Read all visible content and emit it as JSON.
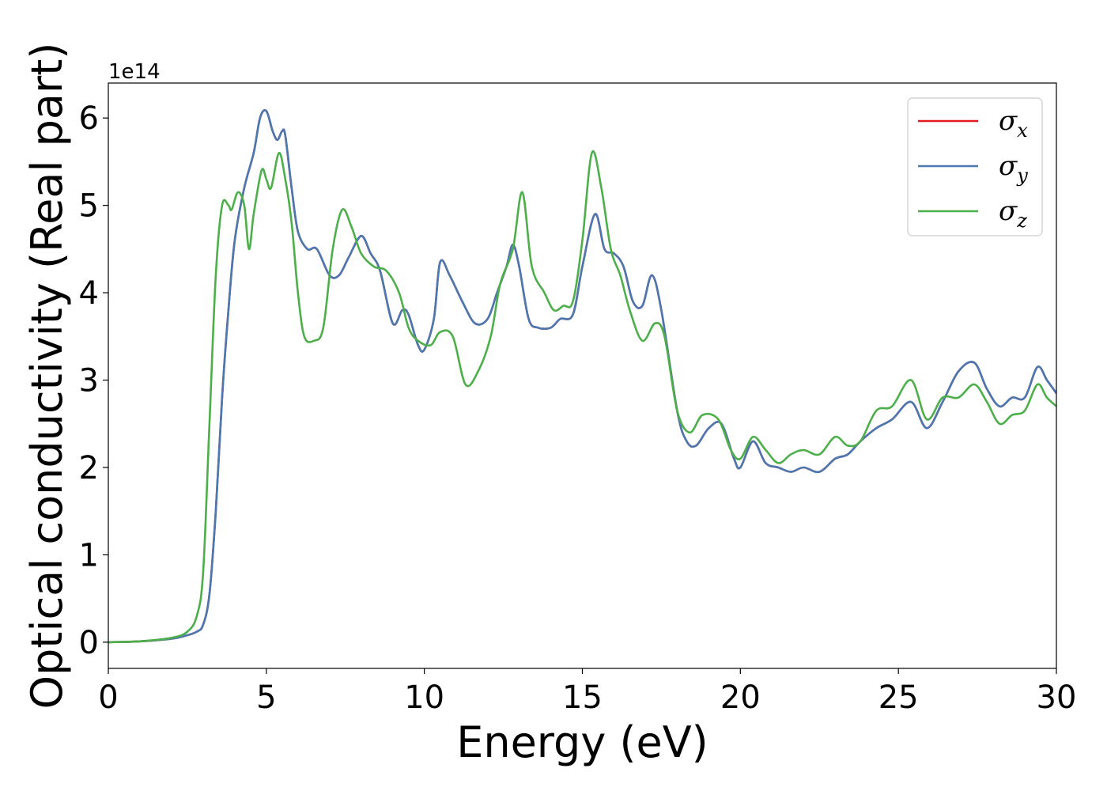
{
  "chart_data": {
    "type": "line",
    "xlabel": "Energy (eV)",
    "ylabel": "Optical conductivity (Real part)",
    "y_offset_label": "1e14",
    "xlim": [
      0,
      30
    ],
    "ylim": [
      -0.3,
      6.4
    ],
    "x_ticks": [
      0,
      5,
      10,
      15,
      20,
      25,
      30
    ],
    "y_ticks": [
      0,
      1,
      2,
      3,
      4,
      5,
      6
    ],
    "grid": false,
    "legend_position": "top-right",
    "series": [
      {
        "name": "σx",
        "symbol": "σ",
        "subscript": "x",
        "color": "#e41a1c",
        "points": [
          [
            0,
            0
          ],
          [
            1,
            0.01
          ],
          [
            2,
            0.04
          ],
          [
            2.5,
            0.08
          ],
          [
            2.8,
            0.12
          ],
          [
            3.0,
            0.2
          ],
          [
            3.2,
            0.55
          ],
          [
            3.4,
            1.5
          ],
          [
            3.6,
            2.8
          ],
          [
            3.8,
            3.8
          ],
          [
            4.0,
            4.6
          ],
          [
            4.3,
            5.2
          ],
          [
            4.6,
            5.6
          ],
          [
            4.8,
            6.0
          ],
          [
            5.0,
            6.08
          ],
          [
            5.2,
            5.85
          ],
          [
            5.35,
            5.75
          ],
          [
            5.5,
            5.85
          ],
          [
            5.6,
            5.8
          ],
          [
            5.8,
            5.2
          ],
          [
            6.0,
            4.7
          ],
          [
            6.3,
            4.5
          ],
          [
            6.6,
            4.5
          ],
          [
            7.0,
            4.2
          ],
          [
            7.3,
            4.2
          ],
          [
            7.6,
            4.4
          ],
          [
            8.0,
            4.65
          ],
          [
            8.3,
            4.45
          ],
          [
            8.6,
            4.25
          ],
          [
            9.0,
            3.65
          ],
          [
            9.3,
            3.8
          ],
          [
            9.5,
            3.75
          ],
          [
            9.8,
            3.4
          ],
          [
            10.0,
            3.35
          ],
          [
            10.3,
            3.7
          ],
          [
            10.5,
            4.35
          ],
          [
            10.8,
            4.2
          ],
          [
            11.2,
            3.9
          ],
          [
            11.6,
            3.65
          ],
          [
            12.0,
            3.7
          ],
          [
            12.3,
            4.0
          ],
          [
            12.6,
            4.3
          ],
          [
            12.8,
            4.55
          ],
          [
            13.0,
            4.3
          ],
          [
            13.3,
            3.7
          ],
          [
            13.6,
            3.6
          ],
          [
            14.0,
            3.6
          ],
          [
            14.3,
            3.7
          ],
          [
            14.7,
            3.75
          ],
          [
            15.0,
            4.3
          ],
          [
            15.4,
            4.9
          ],
          [
            15.7,
            4.5
          ],
          [
            16.0,
            4.45
          ],
          [
            16.3,
            4.3
          ],
          [
            16.6,
            3.9
          ],
          [
            16.9,
            3.85
          ],
          [
            17.2,
            4.2
          ],
          [
            17.5,
            3.8
          ],
          [
            18.0,
            2.65
          ],
          [
            18.3,
            2.3
          ],
          [
            18.6,
            2.25
          ],
          [
            19.0,
            2.45
          ],
          [
            19.4,
            2.5
          ],
          [
            19.8,
            2.1
          ],
          [
            20.0,
            2.0
          ],
          [
            20.4,
            2.3
          ],
          [
            20.8,
            2.05
          ],
          [
            21.2,
            2.0
          ],
          [
            21.6,
            1.95
          ],
          [
            22.0,
            2.0
          ],
          [
            22.5,
            1.95
          ],
          [
            23.0,
            2.1
          ],
          [
            23.4,
            2.15
          ],
          [
            23.8,
            2.3
          ],
          [
            24.3,
            2.45
          ],
          [
            24.8,
            2.55
          ],
          [
            25.4,
            2.75
          ],
          [
            25.9,
            2.45
          ],
          [
            26.4,
            2.75
          ],
          [
            26.9,
            3.1
          ],
          [
            27.4,
            3.2
          ],
          [
            27.8,
            2.9
          ],
          [
            28.2,
            2.7
          ],
          [
            28.6,
            2.8
          ],
          [
            29.0,
            2.8
          ],
          [
            29.4,
            3.15
          ],
          [
            29.7,
            3.0
          ],
          [
            30.0,
            2.85
          ]
        ]
      },
      {
        "name": "σy",
        "symbol": "σ",
        "subscript": "y",
        "color": "#4a79b2",
        "points": [
          [
            0,
            0
          ],
          [
            1,
            0.01
          ],
          [
            2,
            0.04
          ],
          [
            2.5,
            0.08
          ],
          [
            2.8,
            0.12
          ],
          [
            3.0,
            0.2
          ],
          [
            3.2,
            0.55
          ],
          [
            3.4,
            1.5
          ],
          [
            3.6,
            2.8
          ],
          [
            3.8,
            3.8
          ],
          [
            4.0,
            4.6
          ],
          [
            4.3,
            5.2
          ],
          [
            4.6,
            5.6
          ],
          [
            4.8,
            6.0
          ],
          [
            5.0,
            6.08
          ],
          [
            5.2,
            5.85
          ],
          [
            5.35,
            5.75
          ],
          [
            5.5,
            5.85
          ],
          [
            5.6,
            5.8
          ],
          [
            5.8,
            5.2
          ],
          [
            6.0,
            4.7
          ],
          [
            6.3,
            4.5
          ],
          [
            6.6,
            4.5
          ],
          [
            7.0,
            4.2
          ],
          [
            7.3,
            4.2
          ],
          [
            7.6,
            4.4
          ],
          [
            8.0,
            4.65
          ],
          [
            8.3,
            4.45
          ],
          [
            8.6,
            4.25
          ],
          [
            9.0,
            3.65
          ],
          [
            9.3,
            3.8
          ],
          [
            9.5,
            3.75
          ],
          [
            9.8,
            3.4
          ],
          [
            10.0,
            3.35
          ],
          [
            10.3,
            3.7
          ],
          [
            10.5,
            4.35
          ],
          [
            10.8,
            4.2
          ],
          [
            11.2,
            3.9
          ],
          [
            11.6,
            3.65
          ],
          [
            12.0,
            3.7
          ],
          [
            12.3,
            4.0
          ],
          [
            12.6,
            4.3
          ],
          [
            12.8,
            4.55
          ],
          [
            13.0,
            4.3
          ],
          [
            13.3,
            3.7
          ],
          [
            13.6,
            3.6
          ],
          [
            14.0,
            3.6
          ],
          [
            14.3,
            3.7
          ],
          [
            14.7,
            3.75
          ],
          [
            15.0,
            4.3
          ],
          [
            15.4,
            4.9
          ],
          [
            15.7,
            4.5
          ],
          [
            16.0,
            4.45
          ],
          [
            16.3,
            4.3
          ],
          [
            16.6,
            3.9
          ],
          [
            16.9,
            3.85
          ],
          [
            17.2,
            4.2
          ],
          [
            17.5,
            3.8
          ],
          [
            18.0,
            2.65
          ],
          [
            18.3,
            2.3
          ],
          [
            18.6,
            2.25
          ],
          [
            19.0,
            2.45
          ],
          [
            19.4,
            2.5
          ],
          [
            19.8,
            2.1
          ],
          [
            20.0,
            2.0
          ],
          [
            20.4,
            2.3
          ],
          [
            20.8,
            2.05
          ],
          [
            21.2,
            2.0
          ],
          [
            21.6,
            1.95
          ],
          [
            22.0,
            2.0
          ],
          [
            22.5,
            1.95
          ],
          [
            23.0,
            2.1
          ],
          [
            23.4,
            2.15
          ],
          [
            23.8,
            2.3
          ],
          [
            24.3,
            2.45
          ],
          [
            24.8,
            2.55
          ],
          [
            25.4,
            2.75
          ],
          [
            25.9,
            2.45
          ],
          [
            26.4,
            2.75
          ],
          [
            26.9,
            3.1
          ],
          [
            27.4,
            3.2
          ],
          [
            27.8,
            2.9
          ],
          [
            28.2,
            2.7
          ],
          [
            28.6,
            2.8
          ],
          [
            29.0,
            2.8
          ],
          [
            29.4,
            3.15
          ],
          [
            29.7,
            3.0
          ],
          [
            30.0,
            2.85
          ]
        ]
      },
      {
        "name": "σz",
        "symbol": "σ",
        "subscript": "z",
        "color": "#4daf4a",
        "points": [
          [
            0,
            0
          ],
          [
            1,
            0.01
          ],
          [
            2,
            0.05
          ],
          [
            2.5,
            0.12
          ],
          [
            2.8,
            0.3
          ],
          [
            3.0,
            0.8
          ],
          [
            3.2,
            2.5
          ],
          [
            3.4,
            4.2
          ],
          [
            3.6,
            5.0
          ],
          [
            3.8,
            5.0
          ],
          [
            3.9,
            4.95
          ],
          [
            4.1,
            5.15
          ],
          [
            4.3,
            5.0
          ],
          [
            4.45,
            4.5
          ],
          [
            4.6,
            4.9
          ],
          [
            4.85,
            5.4
          ],
          [
            5.0,
            5.3
          ],
          [
            5.15,
            5.2
          ],
          [
            5.4,
            5.6
          ],
          [
            5.6,
            5.3
          ],
          [
            5.8,
            4.8
          ],
          [
            6.0,
            4.0
          ],
          [
            6.2,
            3.5
          ],
          [
            6.5,
            3.45
          ],
          [
            6.8,
            3.6
          ],
          [
            7.1,
            4.5
          ],
          [
            7.4,
            4.95
          ],
          [
            7.7,
            4.75
          ],
          [
            8.0,
            4.45
          ],
          [
            8.4,
            4.3
          ],
          [
            8.8,
            4.25
          ],
          [
            9.2,
            4.0
          ],
          [
            9.5,
            3.6
          ],
          [
            9.8,
            3.45
          ],
          [
            10.2,
            3.4
          ],
          [
            10.5,
            3.55
          ],
          [
            10.9,
            3.5
          ],
          [
            11.3,
            2.95
          ],
          [
            11.7,
            3.1
          ],
          [
            12.1,
            3.5
          ],
          [
            12.4,
            4.1
          ],
          [
            12.8,
            4.5
          ],
          [
            13.1,
            5.15
          ],
          [
            13.4,
            4.3
          ],
          [
            13.8,
            4.0
          ],
          [
            14.1,
            3.8
          ],
          [
            14.4,
            3.85
          ],
          [
            14.7,
            3.9
          ],
          [
            15.0,
            4.6
          ],
          [
            15.3,
            5.6
          ],
          [
            15.6,
            5.2
          ],
          [
            15.9,
            4.5
          ],
          [
            16.2,
            4.2
          ],
          [
            16.5,
            3.8
          ],
          [
            16.9,
            3.45
          ],
          [
            17.3,
            3.65
          ],
          [
            17.6,
            3.5
          ],
          [
            18.0,
            2.65
          ],
          [
            18.4,
            2.4
          ],
          [
            18.8,
            2.6
          ],
          [
            19.3,
            2.55
          ],
          [
            19.7,
            2.2
          ],
          [
            20.0,
            2.1
          ],
          [
            20.4,
            2.35
          ],
          [
            20.8,
            2.2
          ],
          [
            21.2,
            2.05
          ],
          [
            21.6,
            2.15
          ],
          [
            22.0,
            2.2
          ],
          [
            22.5,
            2.15
          ],
          [
            23.0,
            2.35
          ],
          [
            23.4,
            2.25
          ],
          [
            23.8,
            2.3
          ],
          [
            24.3,
            2.65
          ],
          [
            24.8,
            2.7
          ],
          [
            25.4,
            3.0
          ],
          [
            25.9,
            2.55
          ],
          [
            26.4,
            2.8
          ],
          [
            26.9,
            2.8
          ],
          [
            27.4,
            2.95
          ],
          [
            27.8,
            2.75
          ],
          [
            28.2,
            2.5
          ],
          [
            28.6,
            2.6
          ],
          [
            29.0,
            2.65
          ],
          [
            29.4,
            2.95
          ],
          [
            29.7,
            2.8
          ],
          [
            30.0,
            2.7
          ]
        ]
      }
    ]
  }
}
